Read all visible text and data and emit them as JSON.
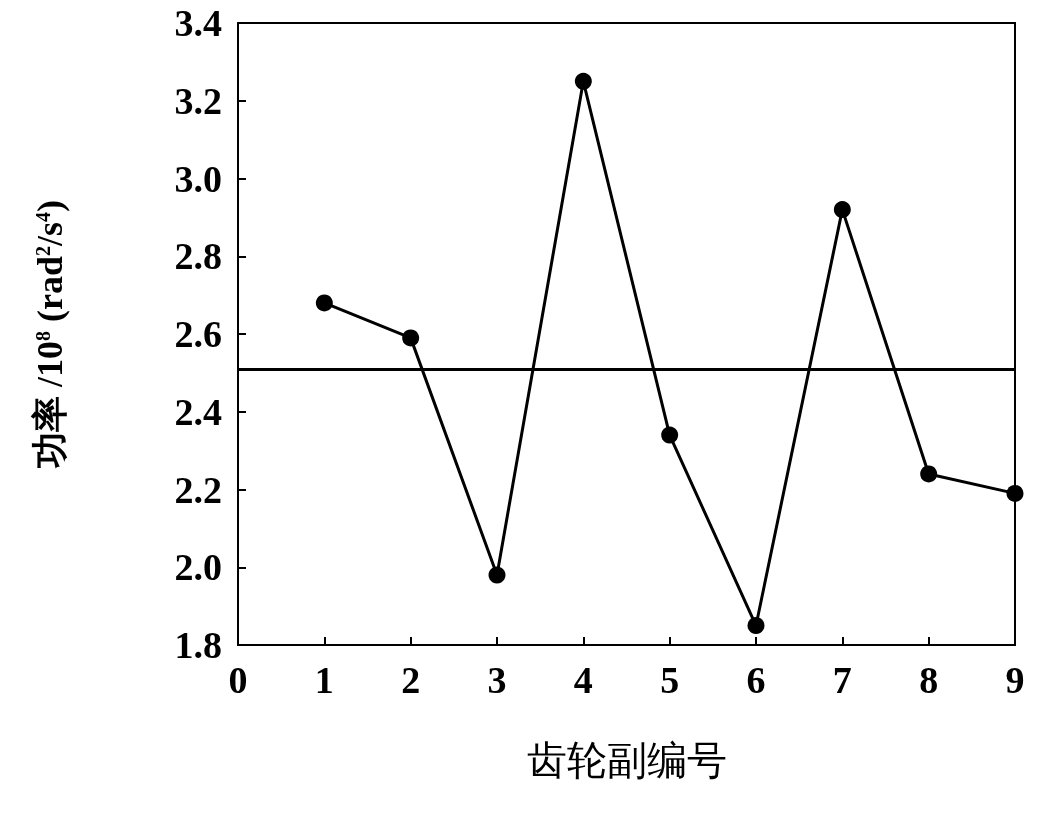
{
  "chart_data": {
    "type": "line",
    "xlabel": "齿轮副编号",
    "ylabel": "功率 /10$^{8}$ (rad$^{2}$/s$^{4}$)",
    "x": [
      1,
      2,
      3,
      4,
      5,
      6,
      7,
      8,
      9
    ],
    "series": [
      {
        "color": "#000000",
        "values": [
          2.68,
          2.59,
          1.98,
          3.25,
          2.34,
          1.85,
          2.92,
          2.24,
          2.19
        ]
      }
    ],
    "xlim": [
      0,
      9
    ],
    "xticks": [
      0,
      1,
      2,
      3,
      4,
      5,
      6,
      7,
      8,
      9
    ],
    "ylim": [
      1.8,
      3.4
    ],
    "yticks": [
      1.8,
      {
        "value": 2,
        "label": "2.0"
      },
      2.2,
      2.4,
      2.6,
      2.8,
      {
        "value": 3,
        "label": "3.0"
      },
      3.2,
      3.4
    ],
    "ref_lines": [
      {
        "axis": "y",
        "value": 2.51,
        "color": "#000000"
      }
    ],
    "marker": "circle",
    "grid": false
  }
}
